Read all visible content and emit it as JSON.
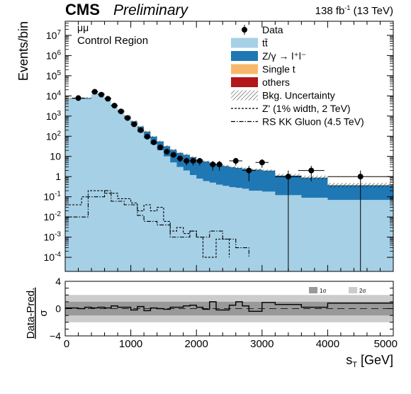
{
  "header": {
    "experiment": "CMS",
    "status": "Preliminary",
    "lumi_pre": "138 fb",
    "lumi_exp": "-1",
    "lumi_post": " (13 TeV)"
  },
  "annotations": {
    "channel": "μμ",
    "region": "Control Region"
  },
  "chart_data": [
    {
      "type": "area",
      "ylabel": "Events/bin",
      "xlim": [
        0,
        5000
      ],
      "ylim": [
        2e-05,
        50000000
      ],
      "yscale": "log",
      "y_ticks": [
        {
          "value": 0.0001,
          "label": "10",
          "exp": "-4"
        },
        {
          "value": 0.001,
          "label": "10",
          "exp": "-3"
        },
        {
          "value": 0.01,
          "label": "10",
          "exp": "-2"
        },
        {
          "value": 0.1,
          "label": "10",
          "exp": "-1"
        },
        {
          "value": 1,
          "label": "1",
          "exp": ""
        },
        {
          "value": 10,
          "label": "10",
          "exp": ""
        },
        {
          "value": 100,
          "label": "10",
          "exp": "2"
        },
        {
          "value": 1000,
          "label": "10",
          "exp": "3"
        },
        {
          "value": 10000,
          "label": "10",
          "exp": "4"
        },
        {
          "value": 100000,
          "label": "10",
          "exp": "5"
        },
        {
          "value": 1000000,
          "label": "10",
          "exp": "6"
        },
        {
          "value": 10000000,
          "label": "10",
          "exp": "7"
        }
      ],
      "x_tick_values": [
        0,
        1000,
        2000,
        3000,
        4000,
        5000
      ],
      "legend": [
        {
          "label": "Data",
          "kind": "marker"
        },
        {
          "label": "tt̄",
          "kind": "fill",
          "color": "#a6d0e6"
        },
        {
          "label": "Z/γ → l⁺l⁻",
          "kind": "fill",
          "color": "#1f78b4"
        },
        {
          "label": "Single t",
          "kind": "fill",
          "color": "#f8b86b"
        },
        {
          "label": "others",
          "kind": "fill",
          "color": "#b2171a"
        },
        {
          "label": "Bkg. Uncertainty",
          "kind": "hatch"
        },
        {
          "label": "Z' (1% width, 2 TeV)",
          "kind": "dashed"
        },
        {
          "label": "RS KK Gluon (4.5 TeV)",
          "kind": "dashdot"
        }
      ],
      "legend_position": "top-right",
      "colors": {
        "ttbar": "#a6d0e6",
        "dy": "#1f78b4",
        "single_t": "#f8b86b",
        "others": "#b2171a"
      },
      "bin_edges": [
        0,
        100,
        200,
        300,
        400,
        500,
        600,
        700,
        800,
        900,
        1000,
        1100,
        1200,
        1300,
        1400,
        1500,
        1600,
        1700,
        1800,
        1900,
        2000,
        2100,
        2200,
        2300,
        2400,
        2500,
        2600,
        2700,
        2800,
        3000,
        3200,
        3600,
        4000,
        5000
      ],
      "series": [
        {
          "name": "tt̄",
          "values": [
            7000,
            7000,
            7000,
            7000,
            15000,
            12000,
            7000,
            3000,
            1500,
            700,
            350,
            160,
            80,
            40,
            20,
            10,
            5,
            3,
            2,
            1.2,
            0.8,
            0.6,
            0.5,
            0.4,
            0.35,
            0.3,
            0.28,
            0.25,
            0.2,
            0.18,
            0.12,
            0.09,
            0.07
          ]
        },
        {
          "name": "Z/γ → l⁺l⁻",
          "values": [
            200,
            400,
            600,
            800,
            1000,
            1000,
            800,
            600,
            450,
            300,
            200,
            140,
            90,
            55,
            35,
            22,
            16,
            12,
            10,
            8,
            6,
            5,
            4,
            3.5,
            3,
            2.6,
            2.4,
            2.2,
            2,
            1.8,
            1,
            0.8,
            0.3
          ]
        },
        {
          "name": "Single t",
          "values": [
            400,
            400,
            400,
            400,
            600,
            500,
            300,
            150,
            80,
            40,
            20,
            10,
            6,
            3,
            2,
            1.3,
            0.8,
            0.5,
            0.35,
            0.25,
            0.2,
            0.15,
            0.12,
            0.1,
            0.09,
            0.08,
            0.07,
            0.06,
            0.05,
            0.04,
            0.03,
            0.03,
            0.02
          ]
        }
      ],
      "bkg_uncertainty": [
        500,
        500,
        500,
        500,
        1500,
        1200,
        700,
        350,
        180,
        90,
        45,
        22,
        12,
        7,
        4,
        2.5,
        1.5,
        1.1,
        0.9,
        0.7,
        0.6,
        0.5,
        0.45,
        0.4,
        0.38,
        0.35,
        0.33,
        0.3,
        0.28,
        0.28,
        0.25,
        0.2,
        0.1
      ],
      "data": [
        {
          "x": 200,
          "y": 7800,
          "xerr": 100
        },
        {
          "x": 450,
          "y": 16000,
          "xerr": 50
        },
        {
          "x": 550,
          "y": 11500,
          "xerr": 50
        },
        {
          "x": 650,
          "y": 7200,
          "xerr": 50
        },
        {
          "x": 750,
          "y": 3300,
          "xerr": 50
        },
        {
          "x": 850,
          "y": 1700,
          "xerr": 50
        },
        {
          "x": 950,
          "y": 800,
          "xerr": 50
        },
        {
          "x": 1050,
          "y": 390,
          "xerr": 50
        },
        {
          "x": 1150,
          "y": 200,
          "xerr": 50
        },
        {
          "x": 1250,
          "y": 95,
          "xerr": 50
        },
        {
          "x": 1350,
          "y": 50,
          "xerr": 50
        },
        {
          "x": 1450,
          "y": 28,
          "xerr": 50
        },
        {
          "x": 1550,
          "y": 17,
          "xerr": 50
        },
        {
          "x": 1650,
          "y": 12,
          "xerr": 50
        },
        {
          "x": 1750,
          "y": 8,
          "xerr": 50
        },
        {
          "x": 1850,
          "y": 6,
          "xerr": 50
        },
        {
          "x": 1950,
          "y": 6,
          "xerr": 50
        },
        {
          "x": 2050,
          "y": 6,
          "xerr": 50
        },
        {
          "x": 2250,
          "y": 4,
          "xerr": 50
        },
        {
          "x": 2350,
          "y": 4,
          "xerr": 50
        },
        {
          "x": 2600,
          "y": 6,
          "xerr": 100
        },
        {
          "x": 2800,
          "y": 2,
          "xerr": 100
        },
        {
          "x": 3000,
          "y": 5,
          "xerr": 100
        },
        {
          "x": 3400,
          "y": 1,
          "xerr": 200
        },
        {
          "x": 3750,
          "y": 2,
          "xerr": 200
        },
        {
          "x": 4500,
          "y": 1,
          "xerr": 500
        }
      ],
      "zprime_signal": [
        {
          "x": 0,
          "y": 0.04
        },
        {
          "x": 250,
          "y": 0.04
        },
        {
          "x": 250,
          "y": 0.1
        },
        {
          "x": 350,
          "y": 0.1
        },
        {
          "x": 350,
          "y": 0.2
        },
        {
          "x": 600,
          "y": 0.2
        },
        {
          "x": 600,
          "y": 0.15
        },
        {
          "x": 800,
          "y": 0.15
        },
        {
          "x": 800,
          "y": 0.08
        },
        {
          "x": 1000,
          "y": 0.08
        },
        {
          "x": 1000,
          "y": 0.05
        },
        {
          "x": 1100,
          "y": 0.05
        },
        {
          "x": 1100,
          "y": 0.02
        },
        {
          "x": 1200,
          "y": 0.02
        },
        {
          "x": 1200,
          "y": 0.04
        },
        {
          "x": 1300,
          "y": 0.04
        },
        {
          "x": 1300,
          "y": 0.02
        },
        {
          "x": 1400,
          "y": 0.02
        },
        {
          "x": 1400,
          "y": 0.03
        },
        {
          "x": 1500,
          "y": 0.03
        },
        {
          "x": 1500,
          "y": 0.006
        },
        {
          "x": 1600,
          "y": 0.006
        },
        {
          "x": 1600,
          "y": 0.002
        },
        {
          "x": 1700,
          "y": 0.002
        },
        {
          "x": 1700,
          "y": 0.003
        },
        {
          "x": 1800,
          "y": 0.003
        },
        {
          "x": 1800,
          "y": 0.0015
        },
        {
          "x": 1900,
          "y": 0.0015
        },
        {
          "x": 1900,
          "y": 0.002
        },
        {
          "x": 2000,
          "y": 0.002
        },
        {
          "x": 2000,
          "y": 0.001
        },
        {
          "x": 2100,
          "y": 0.001
        },
        {
          "x": 2100,
          "y": 0.0001
        },
        {
          "x": 2300,
          "y": 0.0001
        },
        {
          "x": 2300,
          "y": 0.0008
        },
        {
          "x": 2500,
          "y": 0.0008
        },
        {
          "x": 2500,
          "y": 0.0001
        }
      ],
      "rs_kk_signal": [
        {
          "x": 0,
          "y": 0.01
        },
        {
          "x": 350,
          "y": 0.01
        },
        {
          "x": 350,
          "y": 0.1
        },
        {
          "x": 600,
          "y": 0.1
        },
        {
          "x": 600,
          "y": 0.2
        },
        {
          "x": 700,
          "y": 0.2
        },
        {
          "x": 700,
          "y": 0.06
        },
        {
          "x": 900,
          "y": 0.06
        },
        {
          "x": 900,
          "y": 0.04
        },
        {
          "x": 1100,
          "y": 0.04
        },
        {
          "x": 1100,
          "y": 0.012
        },
        {
          "x": 1200,
          "y": 0.012
        },
        {
          "x": 1200,
          "y": 0.006
        },
        {
          "x": 1400,
          "y": 0.006
        },
        {
          "x": 1400,
          "y": 0.004
        },
        {
          "x": 1600,
          "y": 0.004
        },
        {
          "x": 1600,
          "y": 0.001
        },
        {
          "x": 1900,
          "y": 0.001
        },
        {
          "x": 1900,
          "y": 0.002
        },
        {
          "x": 2000,
          "y": 0.002
        },
        {
          "x": 2000,
          "y": 0.001
        },
        {
          "x": 2200,
          "y": 0.001
        },
        {
          "x": 2200,
          "y": 0.002
        },
        {
          "x": 2400,
          "y": 0.002
        },
        {
          "x": 2400,
          "y": 0.0008
        },
        {
          "x": 2600,
          "y": 0.0008
        },
        {
          "x": 2600,
          "y": 0.0003
        },
        {
          "x": 2800,
          "y": 0.0003
        },
        {
          "x": 2800,
          "y": 0.0001
        }
      ]
    },
    {
      "type": "line",
      "xlabel": "s",
      "xlabel_sub": "T",
      "xlabel_unit": " [GeV]",
      "ylabel": "Data-Pred.",
      "ylabel_denom": "σ",
      "xlim": [
        0,
        5000
      ],
      "ylim": [
        -4,
        4
      ],
      "y_tick_labels": [
        "4",
        "0",
        "−4"
      ],
      "band_labels": [
        "1σ",
        "2σ"
      ],
      "band_colors": [
        "#999999",
        "#cccccc"
      ],
      "bands": [
        1,
        2
      ],
      "pulls": [
        0.1,
        0.1,
        0.0,
        0.2,
        0.1,
        0.2,
        0.1,
        0.4,
        0.2,
        0.2,
        -0.2,
        0.3,
        -0.3,
        0.1,
        0.0,
        -0.1,
        0.2,
        0.2,
        0.4,
        0.5,
        0.2,
        -0.1,
        1.0,
        -0.2,
        -0.2,
        0.5,
        1.0,
        0.4,
        -0.4,
        0.9,
        0.6,
        0.2,
        0.8
      ]
    }
  ]
}
